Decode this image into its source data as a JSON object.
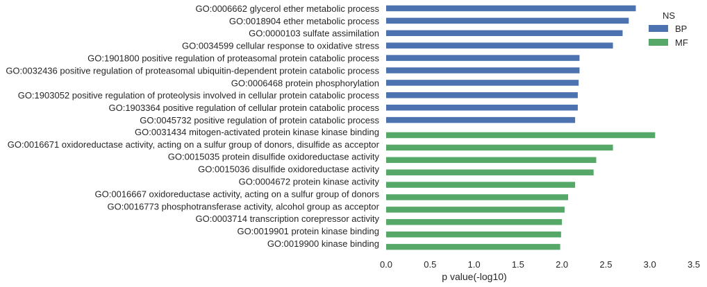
{
  "chart_data": {
    "type": "bar",
    "orientation": "horizontal",
    "xlabel": "p value(-log10)",
    "xlim": [
      0,
      3.5
    ],
    "xticks": [
      "0.0",
      "0.5",
      "1.0",
      "1.5",
      "2.0",
      "2.5",
      "3.0",
      "3.5"
    ],
    "grid": false,
    "legend": {
      "title": "NS",
      "placement": "top-right",
      "entries": [
        {
          "name": "BP",
          "color": "#4c72b0"
        },
        {
          "name": "MF",
          "color": "#55a868"
        }
      ]
    },
    "series": [
      {
        "name": "BP",
        "color": "#4c72b0",
        "items": [
          {
            "label": "GO:0006662 glycerol ether metabolic process",
            "value": 2.84
          },
          {
            "label": "GO:0018904 ether metabolic process",
            "value": 2.76
          },
          {
            "label": "GO:0000103 sulfate assimilation",
            "value": 2.69
          },
          {
            "label": "GO:0034599 cellular response to oxidative stress",
            "value": 2.58
          },
          {
            "label": "GO:1901800 positive regulation of proteasomal protein catabolic process",
            "value": 2.2
          },
          {
            "label": "GO:0032436 positive regulation of proteasomal ubiquitin-dependent protein catabolic process",
            "value": 2.2
          },
          {
            "label": "GO:0006468 protein phosphorylation",
            "value": 2.19
          },
          {
            "label": "GO:1903052 positive regulation of proteolysis involved in cellular protein catabolic process",
            "value": 2.18
          },
          {
            "label": "GO:1903364 positive regulation of cellular protein catabolic process",
            "value": 2.18
          },
          {
            "label": "GO:0045732 positive regulation of protein catabolic process",
            "value": 2.15
          }
        ]
      },
      {
        "name": "MF",
        "color": "#55a868",
        "items": [
          {
            "label": "GO:0031434 mitogen-activated protein kinase kinase binding",
            "value": 3.06
          },
          {
            "label": "GO:0016671 oxidoreductase activity, acting on a sulfur group of donors, disulfide as acceptor",
            "value": 2.58
          },
          {
            "label": "GO:0015035 protein disulfide oxidoreductase activity",
            "value": 2.39
          },
          {
            "label": "GO:0015036 disulfide oxidoreductase activity",
            "value": 2.36
          },
          {
            "label": "GO:0004672 protein kinase activity",
            "value": 2.15
          },
          {
            "label": "GO:0016667 oxidoreductase activity, acting on a sulfur group of donors",
            "value": 2.07
          },
          {
            "label": "GO:0016773 phosphotransferase activity, alcohol group as acceptor",
            "value": 2.03
          },
          {
            "label": "GO:0003714 transcription corepressor activity",
            "value": 2.0
          },
          {
            "label": "GO:0019901 protein kinase binding",
            "value": 1.99
          },
          {
            "label": "GO:0019900 kinase binding",
            "value": 1.98
          }
        ]
      }
    ]
  }
}
